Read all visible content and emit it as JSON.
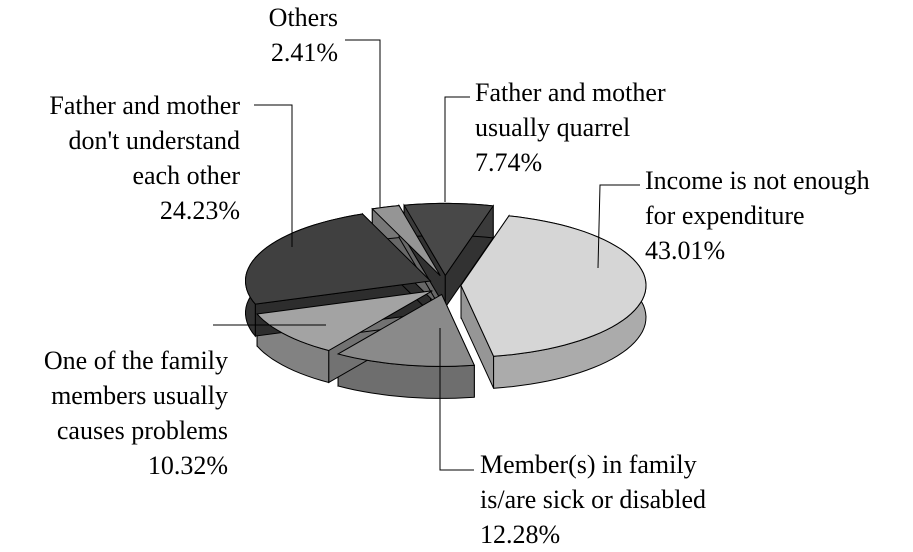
{
  "chart_data": {
    "type": "pie3d",
    "categories": [
      [
        "Income is not enough",
        "for expenditure"
      ],
      [
        "Member(s) in family",
        "is/are sick or disabled"
      ],
      [
        "One of the family",
        "members usually",
        "causes problems"
      ],
      [
        "Father and mother",
        "don't understand",
        "each other"
      ],
      [
        "Others"
      ],
      [
        "Father and mother",
        "usually quarrel"
      ]
    ],
    "values": [
      43.01,
      12.28,
      10.32,
      24.23,
      2.41,
      7.74
    ],
    "value_labels": [
      "43.01%",
      "12.28%",
      "10.32%",
      "24.23%",
      "2.41%",
      "7.74%"
    ],
    "colors": [
      "#d6d6d6",
      "#8a8a8a",
      "#a3a3a3",
      "#404040",
      "#959595",
      "#484848"
    ]
  }
}
